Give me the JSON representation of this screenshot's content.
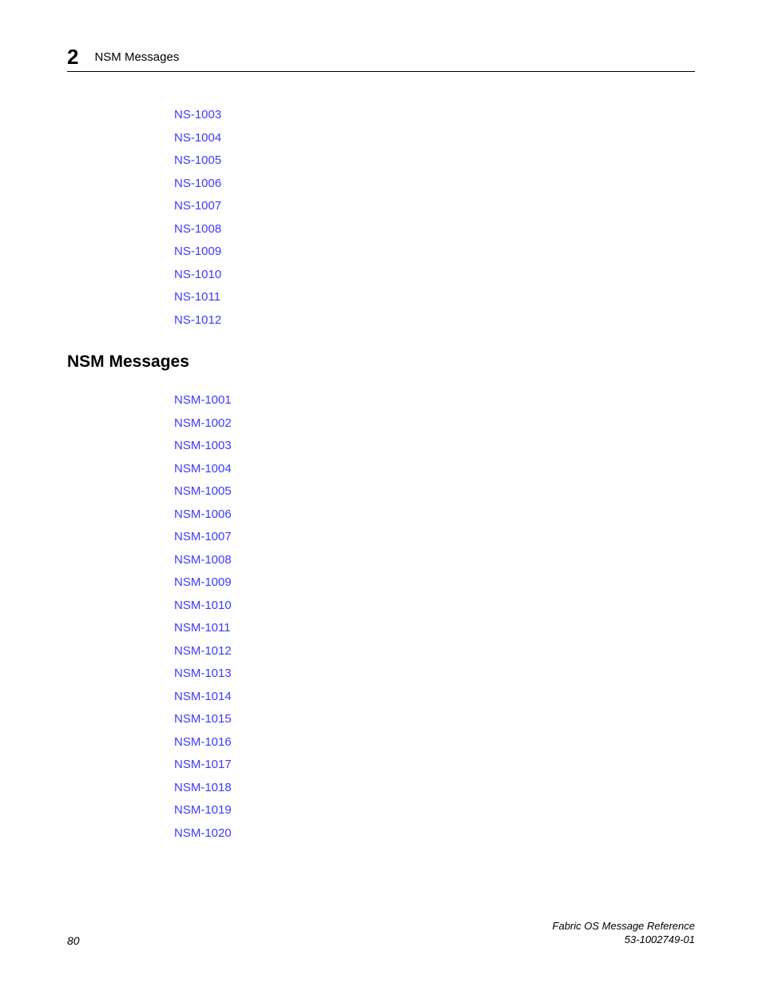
{
  "header": {
    "chapter_number": "2",
    "label": "NSM Messages"
  },
  "ns_links": [
    "NS-1003",
    "NS-1004",
    "NS-1005",
    "NS-1006",
    "NS-1007",
    "NS-1008",
    "NS-1009",
    "NS-1010",
    "NS-1011",
    "NS-1012"
  ],
  "section_heading": "NSM Messages",
  "nsm_links": [
    "NSM-1001",
    "NSM-1002",
    "NSM-1003",
    "NSM-1004",
    "NSM-1005",
    "NSM-1006",
    "NSM-1007",
    "NSM-1008",
    "NSM-1009",
    "NSM-1010",
    "NSM-1011",
    "NSM-1012",
    "NSM-1013",
    "NSM-1014",
    "NSM-1015",
    "NSM-1016",
    "NSM-1017",
    "NSM-1018",
    "NSM-1019",
    "NSM-1020"
  ],
  "footer": {
    "page_number": "80",
    "doc_title": "Fabric OS Message Reference",
    "doc_id": "53-1002749-01"
  },
  "colors": {
    "link_color": "#3b3bff",
    "text_color": "#000000",
    "background_color": "#ffffff",
    "border_color": "#000000"
  }
}
